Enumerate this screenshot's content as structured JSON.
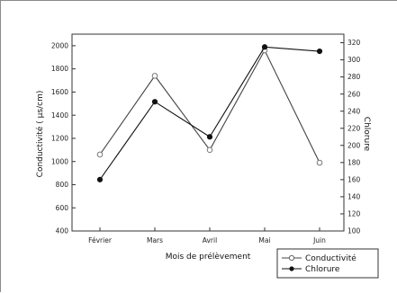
{
  "chart_data": {
    "type": "line",
    "categories": [
      "Février",
      "Mars",
      "Avril",
      "Mai",
      "Juin"
    ],
    "xlabel": "Mois de prélèvement",
    "ylabel_left": "Conductivité ( µs/cm)",
    "ylabel_right": "Chlorure",
    "ylim_left": [
      400,
      2100
    ],
    "ylim_right": [
      100,
      330
    ],
    "yticks_left": [
      400,
      600,
      800,
      1000,
      1200,
      1400,
      1600,
      1800,
      2000
    ],
    "yticks_right": [
      100,
      120,
      140,
      160,
      180,
      200,
      220,
      240,
      260,
      280,
      300,
      320
    ],
    "series": [
      {
        "name": "Conductivité",
        "axis": "left",
        "marker": "open-circle",
        "color": "#444444",
        "values": [
          1060,
          1740,
          1100,
          1960,
          990
        ]
      },
      {
        "name": "Chlorure",
        "axis": "right",
        "marker": "filled-circle",
        "color": "#111111",
        "values": [
          160,
          251,
          210,
          315,
          310
        ]
      }
    ],
    "legend": "bottom-right",
    "grid": false
  }
}
